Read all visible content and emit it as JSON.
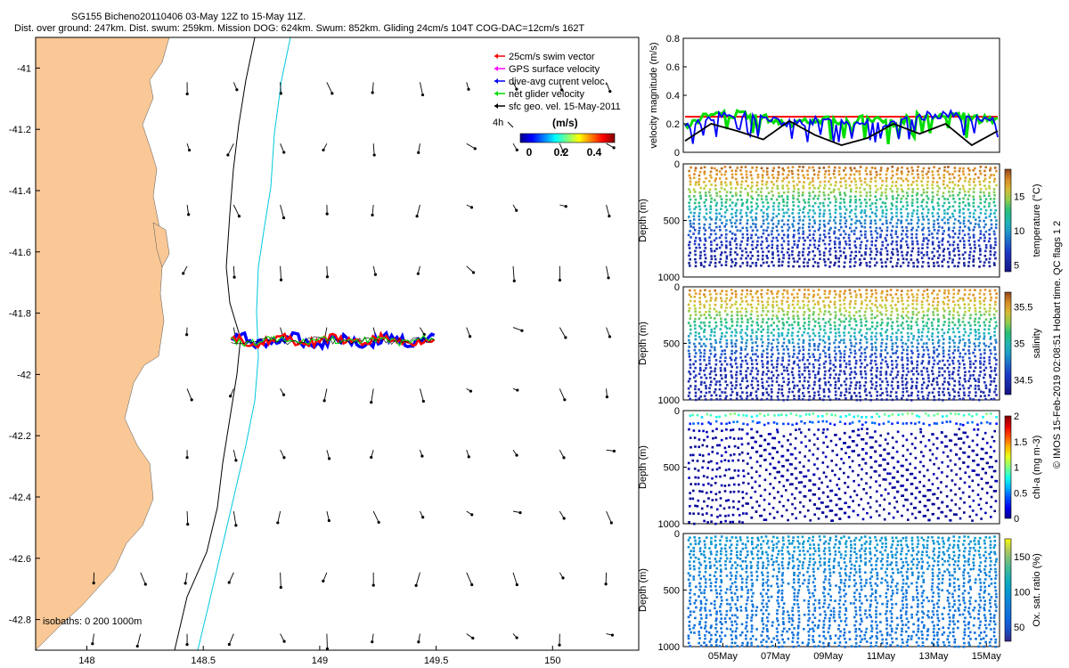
{
  "header": {
    "line1": "SG155 Bicheno20110406 03-May 12Z to 15-May 11Z.",
    "line2": "Dist. over ground: 247km. Dist. swum: 259km. Mission DOG: 624km. Swum: 852km. Gliding 24cm/s 104T COG-DAC=12cm/s 162T"
  },
  "colors": {
    "land": "#f9c896",
    "track_red": "#ff0000",
    "track_blue": "#0000ff",
    "track_green": "#00dd00",
    "isobath_200": "#00c8e0",
    "isobath_1000": "#000000"
  },
  "map": {
    "legend": {
      "items": [
        {
          "label": "25cm/s swim vector",
          "color": "#ff0000"
        },
        {
          "label": "GPS surface velocity",
          "color": "#ff00ff"
        },
        {
          "label": "dive-avg current veloc.",
          "color": "#0000ff"
        },
        {
          "label": "net glider velocity",
          "color": "#00dd00"
        },
        {
          "label": "sfc geo. vel. 15-May-2011",
          "color": "#000000"
        }
      ],
      "four_h": "4h",
      "colorbar_title": "(m/s)",
      "colorbar_ticks": [
        "0",
        "0.2",
        "0.4"
      ]
    },
    "isobaths_label": "isobaths: 0  200  1000m"
  },
  "right_label": "© IMOS 15-Feb-2019 02:08:51 Hobart time. QC flags 1 2",
  "chart_data": [
    {
      "type": "scatter",
      "title": "",
      "xlabel": "",
      "ylabel": "",
      "xlim": [
        147.78,
        150.37
      ],
      "ylim": [
        -42.9,
        -40.9
      ],
      "x_ticks": [
        "148",
        "148.5",
        "149",
        "149.5",
        "150"
      ],
      "y_ticks": [
        "-41",
        "-41.2",
        "-41.4",
        "-41.6",
        "-41.8",
        "-42",
        "-42.2",
        "-42.4",
        "-42.6",
        "-42.8"
      ],
      "grid": false,
      "glider_track": {
        "lon_start": 148.62,
        "lon_end": 149.5,
        "lat": -41.89
      },
      "geostrophic_vectors": {
        "lons": [
          148.0,
          148.2,
          148.4,
          148.6,
          148.8,
          149.0,
          149.2,
          149.4,
          149.6,
          149.8,
          150.0,
          150.2
        ],
        "lats": [
          -41.0,
          -41.2,
          -41.4,
          -41.6,
          -41.8,
          -42.0,
          -42.2,
          -42.4,
          -42.6,
          -42.8
        ]
      }
    },
    {
      "type": "line",
      "title": "",
      "ylabel": "velocity magnitude (m/s)",
      "xlim": [
        3.5,
        15.5
      ],
      "ylim": [
        0,
        0.8
      ],
      "y_ticks": [
        "0",
        "0.2",
        "0.4",
        "0.6",
        "0.8"
      ],
      "series": [
        {
          "color": "#ff0000",
          "values": [
            0.25,
            0.25,
            0.25,
            0.25,
            0.25,
            0.25,
            0.25,
            0.25,
            0.25,
            0.25,
            0.25,
            0.25,
            0.25
          ]
        },
        {
          "color": "#00dd00",
          "values": [
            0.19,
            0.26,
            0.27,
            0.25,
            0.2,
            0.23,
            0.22,
            0.23,
            0.2,
            0.26,
            0.27,
            0.24,
            0.22
          ]
        },
        {
          "color": "#0000ff",
          "values": [
            0.17,
            0.25,
            0.26,
            0.24,
            0.2,
            0.22,
            0.21,
            0.22,
            0.19,
            0.25,
            0.27,
            0.23,
            0.21
          ]
        },
        {
          "color": "#000000",
          "values": [
            0.08,
            0.2,
            0.15,
            0.09,
            0.22,
            0.12,
            0.05,
            0.1,
            0.2,
            0.13,
            0.2,
            0.05,
            0.15
          ]
        }
      ]
    },
    {
      "type": "heatmap",
      "ylabel": "Depth (m)",
      "ylim": [
        1000,
        0
      ],
      "y_ticks": [
        "0",
        "500",
        "1000"
      ],
      "colorbar_label": "temperature (°C)",
      "colorbar_ticks": [
        "5",
        "10",
        "15"
      ],
      "clim": [
        4,
        19
      ],
      "profile": [
        [
          0,
          18
        ],
        [
          100,
          17
        ],
        [
          200,
          15
        ],
        [
          300,
          13
        ],
        [
          400,
          11
        ],
        [
          500,
          9
        ],
        [
          650,
          7
        ],
        [
          800,
          5.5
        ],
        [
          1000,
          4.5
        ]
      ]
    },
    {
      "type": "heatmap",
      "ylabel": "Depth (m)",
      "ylim": [
        1000,
        0
      ],
      "y_ticks": [
        "0",
        "500",
        "1000"
      ],
      "colorbar_label": "salinity",
      "colorbar_ticks": [
        "34.5",
        "35",
        "35.5"
      ],
      "clim": [
        34.3,
        35.7
      ],
      "profile": [
        [
          0,
          35.55
        ],
        [
          100,
          35.45
        ],
        [
          200,
          35.3
        ],
        [
          350,
          35.05
        ],
        [
          500,
          34.75
        ],
        [
          700,
          34.5
        ],
        [
          1000,
          34.45
        ]
      ]
    },
    {
      "type": "heatmap",
      "ylabel": "Depth (m)",
      "ylim": [
        1000,
        0
      ],
      "y_ticks": [
        "0",
        "500",
        "1000"
      ],
      "colorbar_label": "chl-a (mg m-3)",
      "colorbar_ticks": [
        "0",
        "0.5",
        "1",
        "1.5",
        "2"
      ],
      "clim": [
        0,
        2
      ],
      "profile": [
        [
          0,
          1.0
        ],
        [
          50,
          0.6
        ],
        [
          150,
          0.05
        ],
        [
          1000,
          0.0
        ]
      ]
    },
    {
      "type": "heatmap",
      "ylabel": "Depth (m)",
      "ylim": [
        1000,
        0
      ],
      "y_ticks": [
        "0",
        "500",
        "1000"
      ],
      "colorbar_label": "Ox. sat. ratio (%)",
      "colorbar_ticks": [
        "50",
        "100",
        "150"
      ],
      "clim": [
        30,
        175
      ],
      "profile": [
        [
          0,
          100
        ],
        [
          200,
          90
        ],
        [
          500,
          75
        ],
        [
          800,
          70
        ],
        [
          1000,
          72
        ]
      ],
      "x_ticks": [
        "05May",
        "07May",
        "09May",
        "11May",
        "13May",
        "15May"
      ],
      "x_tick_values": [
        5,
        7,
        9,
        11,
        13,
        15
      ]
    }
  ]
}
